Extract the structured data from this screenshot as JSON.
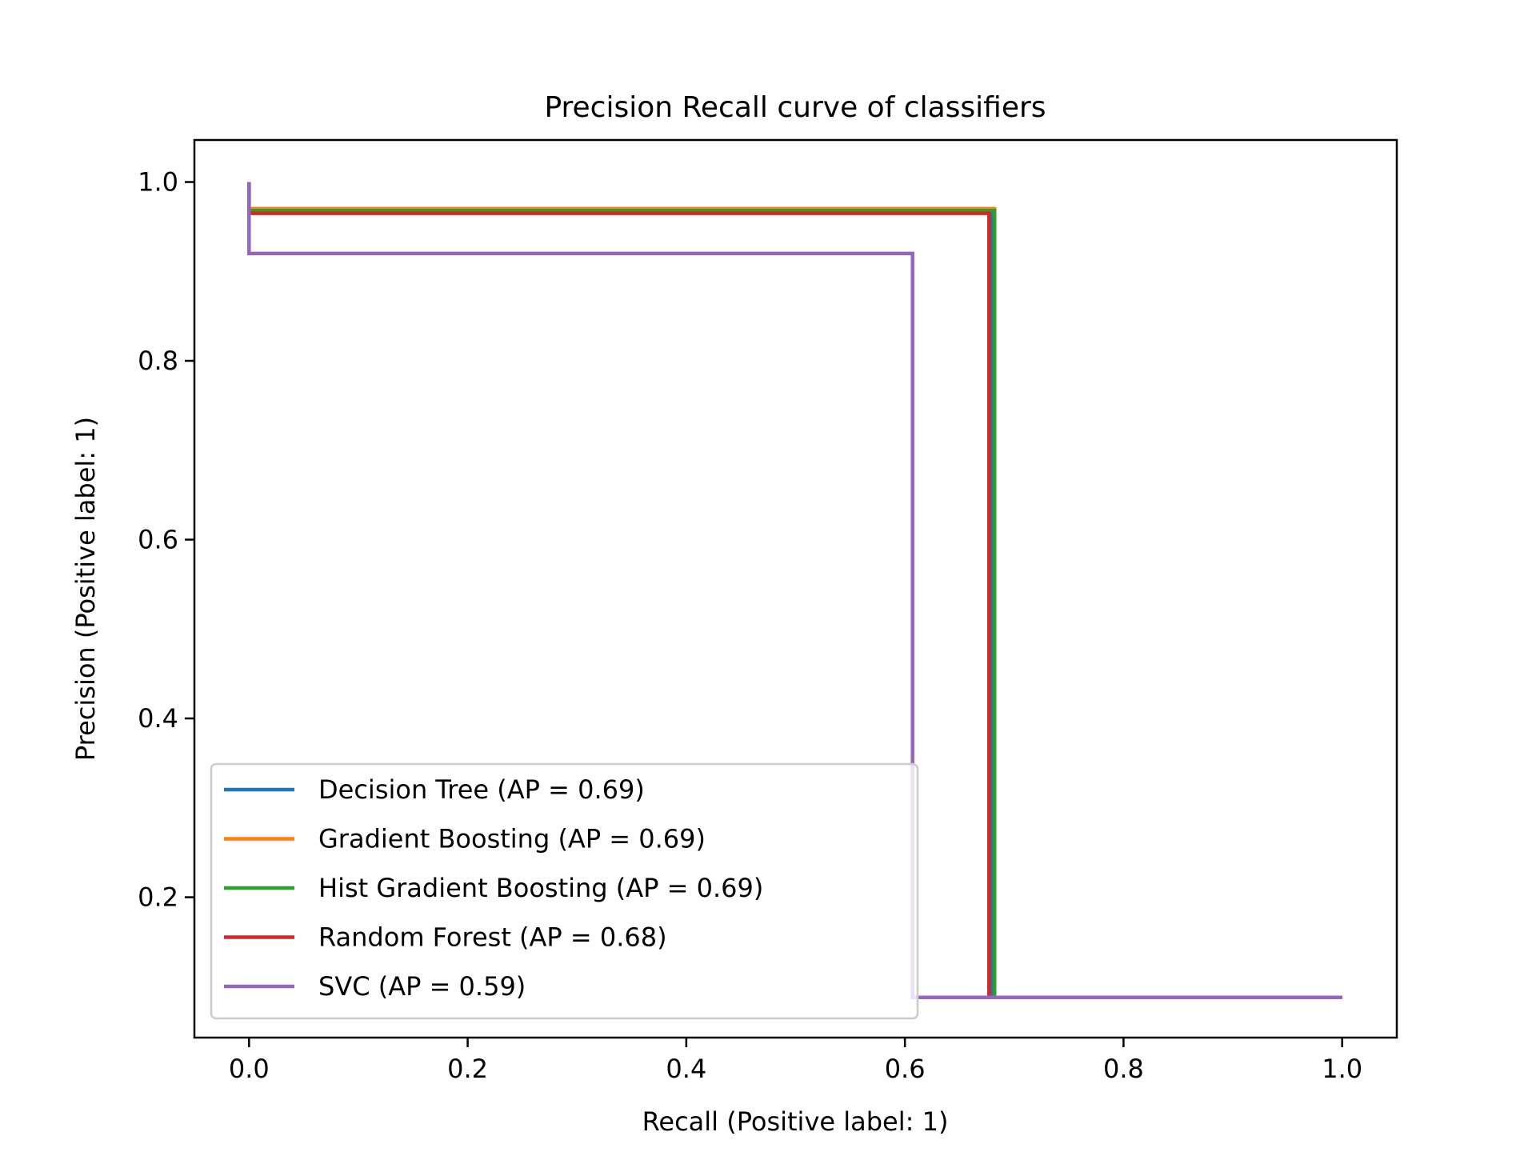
{
  "chart_data": {
    "type": "line",
    "title": "Precision Recall curve of classifiers",
    "xlabel": "Recall (Positive label: 1)",
    "ylabel": "Precision (Positive label: 1)",
    "xlim": [
      -0.05,
      1.05
    ],
    "ylim": [
      0.043,
      1.047
    ],
    "xticks": [
      "0.0",
      "0.2",
      "0.4",
      "0.6",
      "0.8",
      "1.0"
    ],
    "yticks": [
      "0.2",
      "0.4",
      "0.6",
      "0.8",
      "1.0"
    ],
    "grid": false,
    "legend_position": "lower-left",
    "series": [
      {
        "name": "Decision Tree (AP = 0.69)",
        "color": "#1f77b4",
        "x": [
          1.0,
          0.68,
          0.68,
          0.0,
          0.0
        ],
        "y": [
          0.088,
          0.088,
          0.97,
          0.97,
          1.0
        ]
      },
      {
        "name": "Gradient Boosting (AP = 0.69)",
        "color": "#ff7f0e",
        "x": [
          1.0,
          0.682,
          0.682,
          0.0,
          0.0
        ],
        "y": [
          0.088,
          0.088,
          0.97,
          0.97,
          1.0
        ]
      },
      {
        "name": "Hist Gradient Boosting (AP = 0.69)",
        "color": "#2ca02c",
        "x": [
          1.0,
          0.682,
          0.682,
          0.0,
          0.0
        ],
        "y": [
          0.088,
          0.088,
          0.968,
          0.968,
          1.0
        ]
      },
      {
        "name": "Random Forest (AP = 0.68)",
        "color": "#d62728",
        "x": [
          1.0,
          0.677,
          0.677,
          0.0,
          0.0
        ],
        "y": [
          0.088,
          0.088,
          0.965,
          0.965,
          1.0
        ]
      },
      {
        "name": "SVC (AP = 0.59)",
        "color": "#9467bd",
        "x": [
          1.0,
          0.607,
          0.607,
          0.0,
          0.0
        ],
        "y": [
          0.088,
          0.088,
          0.92,
          0.92,
          1.0
        ]
      }
    ]
  }
}
